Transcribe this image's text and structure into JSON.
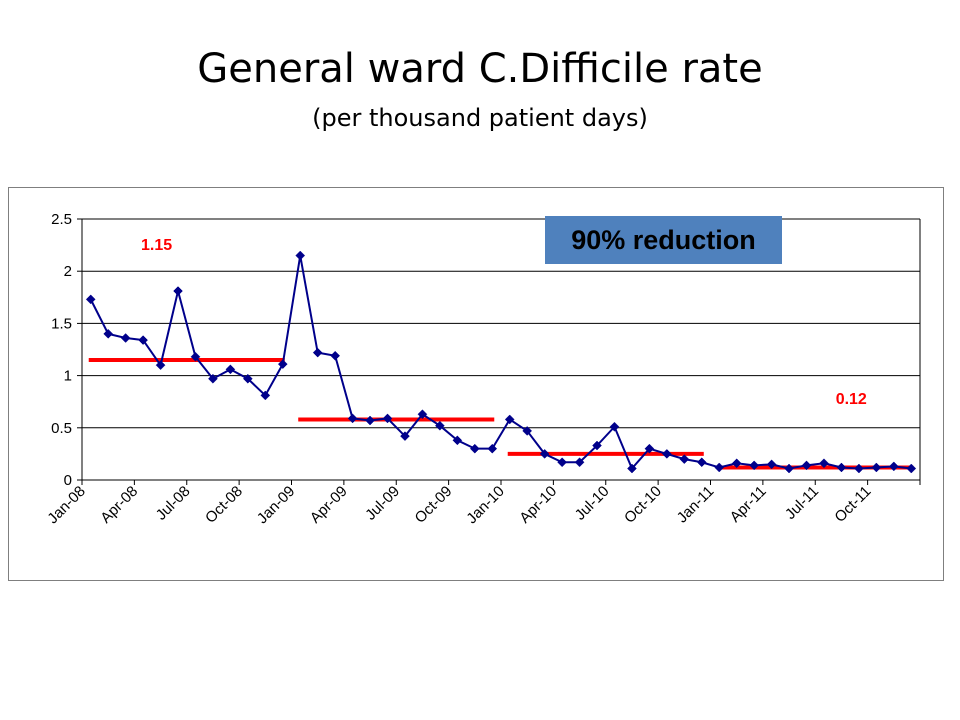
{
  "slide": {
    "title": "General ward C.Difficile rate",
    "subtitle": "(per thousand patient days)"
  },
  "callout": {
    "text": "90% reduction",
    "background": "#4f81bd"
  },
  "colors": {
    "series": "#00008b",
    "average_line": "#ff0000",
    "grid": "#000000"
  },
  "chart_data": {
    "type": "line",
    "title": "",
    "xlabel": "",
    "ylabel": "",
    "ylim": [
      0,
      2.5
    ],
    "yticks": [
      "0",
      "0.5",
      "1",
      "1.5",
      "2",
      "2.5"
    ],
    "grid": true,
    "legend": "none",
    "x_tick_labels": [
      "Jan-08",
      "Apr-08",
      "Jul-08",
      "Oct-08",
      "Jan-09",
      "Apr-09",
      "Jul-09",
      "Oct-09",
      "Jan-10",
      "Apr-10",
      "Jul-10",
      "Oct-10",
      "Jan-11",
      "Apr-11",
      "Jul-11",
      "Oct-11"
    ],
    "categories": [
      "Jan-08",
      "Feb-08",
      "Mar-08",
      "Apr-08",
      "May-08",
      "Jun-08",
      "Jul-08",
      "Aug-08",
      "Sep-08",
      "Oct-08",
      "Nov-08",
      "Dec-08",
      "Jan-09",
      "Feb-09",
      "Mar-09",
      "Apr-09",
      "May-09",
      "Jun-09",
      "Jul-09",
      "Aug-09",
      "Sep-09",
      "Oct-09",
      "Nov-09",
      "Dec-09",
      "Jan-10",
      "Feb-10",
      "Mar-10",
      "Apr-10",
      "May-10",
      "Jun-10",
      "Jul-10",
      "Aug-10",
      "Sep-10",
      "Oct-10",
      "Nov-10",
      "Dec-10",
      "Jan-11",
      "Feb-11",
      "Mar-11",
      "Apr-11",
      "May-11",
      "Jun-11",
      "Jul-11",
      "Aug-11",
      "Sep-11",
      "Oct-11",
      "Nov-11",
      "Dec-11"
    ],
    "series": [
      {
        "values": [
          1.73,
          1.4,
          1.36,
          1.34,
          1.1,
          1.81,
          1.18,
          0.97,
          1.06,
          0.97,
          0.81,
          1.11,
          2.15,
          1.22,
          1.19,
          0.59,
          0.57,
          0.59,
          0.42,
          0.63,
          0.52,
          0.38,
          0.3,
          0.3,
          0.58,
          0.47,
          0.25,
          0.17,
          0.17,
          0.33,
          0.51,
          0.11,
          0.3,
          0.25,
          0.2,
          0.17,
          0.12,
          0.16,
          0.14,
          0.15,
          0.11,
          0.14,
          0.16,
          0.12,
          0.11,
          0.12,
          0.13,
          0.11
        ]
      }
    ],
    "average_segments": [
      {
        "label": "1.15",
        "value": 1.15,
        "start": "Jan-08",
        "end": "Dec-08"
      },
      {
        "label": "",
        "value": 0.58,
        "start": "Jan-09",
        "end": "Dec-09"
      },
      {
        "label": "",
        "value": 0.25,
        "start": "Jan-10",
        "end": "Dec-10"
      },
      {
        "label": "0.12",
        "value": 0.12,
        "start": "Jan-11",
        "end": "Dec-11"
      }
    ]
  }
}
